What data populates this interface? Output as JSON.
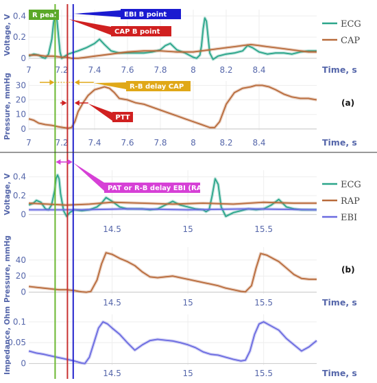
{
  "chart_data": [
    {
      "id": "a-top",
      "type": "line",
      "ylabel": "Voltage, V",
      "xlabel": "Time, s",
      "xlim": [
        7.0,
        8.75
      ],
      "ylim": [
        -0.02,
        0.46
      ],
      "yticks": [
        "0",
        "0.2",
        "0.4"
      ],
      "ytick_values": [
        0,
        0.2,
        0.4
      ],
      "xticks": [
        "7",
        "7.2",
        "7.4",
        "7.6",
        "7.8",
        "8",
        "8.2",
        "8.4"
      ],
      "xtick_values": [
        7.0,
        7.2,
        7.4,
        7.6,
        7.8,
        8.0,
        8.2,
        8.4
      ],
      "series": [
        {
          "name": "ECG",
          "color": "#2aa58a",
          "x": [
            7.0,
            7.03,
            7.06,
            7.08,
            7.1,
            7.12,
            7.14,
            7.15,
            7.16,
            7.17,
            7.18,
            7.19,
            7.2,
            7.22,
            7.24,
            7.26,
            7.3,
            7.35,
            7.4,
            7.43,
            7.46,
            7.5,
            7.55,
            7.6,
            7.65,
            7.7,
            7.75,
            7.8,
            7.83,
            7.86,
            7.9,
            7.95,
            8.0,
            8.02,
            8.04,
            8.05,
            8.06,
            8.07,
            8.08,
            8.09,
            8.1,
            8.12,
            8.15,
            8.2,
            8.25,
            8.3,
            8.33,
            8.36,
            8.4,
            8.45,
            8.5,
            8.55,
            8.6,
            8.65,
            8.7,
            8.75
          ],
          "y": [
            0.02,
            0.04,
            0.03,
            0.01,
            0.0,
            0.04,
            0.18,
            0.33,
            0.41,
            0.38,
            0.22,
            0.06,
            0.0,
            0.02,
            0.04,
            0.05,
            0.07,
            0.1,
            0.14,
            0.18,
            0.13,
            0.07,
            0.05,
            0.05,
            0.05,
            0.05,
            0.06,
            0.08,
            0.12,
            0.14,
            0.08,
            0.05,
            0.01,
            0.0,
            0.03,
            0.12,
            0.28,
            0.38,
            0.35,
            0.2,
            0.05,
            -0.01,
            0.02,
            0.04,
            0.05,
            0.07,
            0.12,
            0.1,
            0.06,
            0.04,
            0.05,
            0.05,
            0.04,
            0.06,
            0.07,
            0.07
          ]
        },
        {
          "name": "CAP",
          "color": "#b86a3a",
          "x": [
            7.0,
            7.05,
            7.1,
            7.15,
            7.2,
            7.23,
            7.26,
            7.3,
            7.35,
            7.4,
            7.45,
            7.5,
            7.55,
            7.6,
            7.7,
            7.8,
            7.9,
            8.0,
            8.05,
            8.1,
            8.15,
            8.2,
            8.25,
            8.3,
            8.35,
            8.4,
            8.45,
            8.5,
            8.55,
            8.6,
            8.65,
            8.7,
            8.75
          ],
          "y": [
            0.03,
            0.03,
            0.02,
            0.02,
            0.01,
            0.01,
            0.0,
            0.0,
            0.01,
            0.02,
            0.03,
            0.04,
            0.05,
            0.06,
            0.07,
            0.07,
            0.06,
            0.06,
            0.07,
            0.08,
            0.09,
            0.1,
            0.11,
            0.12,
            0.13,
            0.12,
            0.11,
            0.1,
            0.09,
            0.08,
            0.07,
            0.06,
            0.06
          ]
        }
      ],
      "legend": [
        "ECG",
        "CAP"
      ],
      "legend_position": "right"
    },
    {
      "id": "a-bottom",
      "type": "line",
      "ylabel": "Pressure, mmHg",
      "xlabel": "Time, s",
      "xlim": [
        7.0,
        8.75
      ],
      "ylim": [
        -1,
        33
      ],
      "yticks": [
        "0",
        "10",
        "20",
        "30"
      ],
      "ytick_values": [
        0,
        10,
        20,
        30
      ],
      "xticks": [
        "7",
        "7.2",
        "7.4",
        "7.6",
        "7.8",
        "8",
        "8.2",
        "8.4"
      ],
      "xtick_values": [
        7.0,
        7.2,
        7.4,
        7.6,
        7.8,
        8.0,
        8.2,
        8.4
      ],
      "series": [
        {
          "name": "CAP",
          "color": "#b86a3a",
          "x": [
            7.0,
            7.03,
            7.06,
            7.1,
            7.14,
            7.18,
            7.21,
            7.24,
            7.26,
            7.28,
            7.3,
            7.33,
            7.36,
            7.4,
            7.43,
            7.46,
            7.49,
            7.52,
            7.55,
            7.6,
            7.65,
            7.7,
            7.75,
            7.8,
            7.85,
            7.9,
            7.95,
            8.0,
            8.05,
            8.1,
            8.13,
            8.16,
            8.2,
            8.25,
            8.3,
            8.35,
            8.38,
            8.42,
            8.46,
            8.5,
            8.55,
            8.6,
            8.65,
            8.7,
            8.75
          ],
          "y": [
            7,
            6,
            4,
            3,
            2.5,
            1.5,
            1,
            0.5,
            1,
            5,
            12,
            18,
            23,
            27,
            28,
            29,
            28,
            25,
            21,
            20,
            18,
            17,
            15,
            13,
            11,
            9,
            7,
            5,
            3,
            1,
            1,
            5,
            17,
            25,
            28,
            29,
            30,
            30,
            29,
            27,
            24,
            22,
            21,
            21,
            20
          ]
        }
      ]
    },
    {
      "id": "b-top",
      "type": "line",
      "ylabel": "Voltage, V",
      "xlim": [
        13.95,
        15.85
      ],
      "ylim": [
        -0.04,
        0.47
      ],
      "yticks": [
        "0",
        "0.2",
        "0.4"
      ],
      "ytick_values": [
        0,
        0.2,
        0.4
      ],
      "xticks": [
        "14.5",
        "15",
        "15.5"
      ],
      "xtick_values": [
        14.5,
        15.0,
        15.5
      ],
      "series": [
        {
          "name": "ECG",
          "color": "#2aa58a",
          "x": [
            13.95,
            13.98,
            14.0,
            14.03,
            14.06,
            14.08,
            14.1,
            14.12,
            14.13,
            14.14,
            14.15,
            14.16,
            14.18,
            14.2,
            14.22,
            14.25,
            14.3,
            14.35,
            14.4,
            14.43,
            14.46,
            14.5,
            14.55,
            14.6,
            14.65,
            14.7,
            14.75,
            14.8,
            14.85,
            14.9,
            14.95,
            15.0,
            15.05,
            15.1,
            15.12,
            15.14,
            15.16,
            15.18,
            15.2,
            15.22,
            15.25,
            15.3,
            15.35,
            15.4,
            15.45,
            15.5,
            15.55,
            15.6,
            15.65,
            15.7,
            15.75,
            15.8,
            15.85
          ],
          "y": [
            0.1,
            0.12,
            0.15,
            0.13,
            0.06,
            0.05,
            0.1,
            0.25,
            0.38,
            0.42,
            0.38,
            0.22,
            0.04,
            -0.02,
            0.02,
            0.05,
            0.04,
            0.05,
            0.08,
            0.12,
            0.18,
            0.14,
            0.08,
            0.06,
            0.06,
            0.06,
            0.05,
            0.06,
            0.1,
            0.14,
            0.1,
            0.08,
            0.06,
            0.05,
            0.03,
            0.05,
            0.2,
            0.38,
            0.32,
            0.08,
            -0.02,
            0.02,
            0.04,
            0.06,
            0.05,
            0.06,
            0.1,
            0.16,
            0.08,
            0.06,
            0.05,
            0.05,
            0.05
          ]
        },
        {
          "name": "RAP",
          "color": "#b86a3a",
          "x": [
            13.95,
            14.2,
            14.35,
            14.5,
            14.7,
            14.9,
            15.1,
            15.3,
            15.5,
            15.7,
            15.85
          ],
          "y": [
            0.12,
            0.1,
            0.11,
            0.13,
            0.12,
            0.11,
            0.12,
            0.11,
            0.13,
            0.12,
            0.12
          ]
        },
        {
          "name": "EBI",
          "color": "#6a6ae0",
          "x": [
            13.95,
            14.3,
            14.6,
            15.0,
            15.4,
            15.85
          ],
          "y": [
            0.05,
            0.05,
            0.06,
            0.05,
            0.06,
            0.05
          ]
        }
      ],
      "legend": [
        "ECG",
        "RAP",
        "EBI"
      ],
      "legend_position": "right"
    },
    {
      "id": "b-middle",
      "type": "line",
      "ylabel": "Pressure, mmHg",
      "xlabel": "Time, s",
      "xlim": [
        13.95,
        15.85
      ],
      "ylim": [
        -2,
        56
      ],
      "yticks": [
        "0",
        "20",
        "40"
      ],
      "ytick_values": [
        0,
        20,
        40
      ],
      "xticks": [
        "14.5",
        "15",
        "15.5"
      ],
      "xtick_values": [
        14.5,
        15.0,
        15.5
      ],
      "series": [
        {
          "name": "RAP",
          "color": "#b86a3a",
          "x": [
            13.95,
            14.0,
            14.05,
            14.1,
            14.15,
            14.2,
            14.25,
            14.28,
            14.3,
            14.33,
            14.36,
            14.4,
            14.43,
            14.46,
            14.5,
            14.55,
            14.6,
            14.65,
            14.7,
            14.75,
            14.8,
            14.85,
            14.9,
            14.95,
            15.0,
            15.05,
            15.1,
            15.15,
            15.2,
            15.25,
            15.3,
            15.35,
            15.38,
            15.42,
            15.45,
            15.48,
            15.52,
            15.56,
            15.6,
            15.65,
            15.7,
            15.75,
            15.8,
            15.85
          ],
          "y": [
            7,
            6,
            5,
            4,
            3,
            3,
            2,
            1,
            0.5,
            0,
            1,
            15,
            35,
            49,
            47,
            42,
            38,
            33,
            25,
            19,
            18,
            19,
            20,
            18,
            16,
            14,
            12,
            10,
            8,
            5,
            3,
            1,
            0.5,
            8,
            30,
            48,
            46,
            42,
            38,
            30,
            22,
            17,
            16,
            16
          ]
        }
      ]
    },
    {
      "id": "b-bottom",
      "type": "line",
      "ylabel": "Impedance, Ohm",
      "xlabel": "Time, s",
      "xlim": [
        13.95,
        15.85
      ],
      "ylim": [
        -0.004,
        0.118
      ],
      "yticks": [
        "0",
        "0.05",
        "0.1"
      ],
      "ytick_values": [
        0,
        0.05,
        0.1
      ],
      "xticks": [
        "14.5",
        "15",
        "15.5"
      ],
      "xtick_values": [
        14.5,
        15.0,
        15.5
      ],
      "series": [
        {
          "name": "EBI",
          "color": "#6a6ae0",
          "x": [
            13.95,
            14.0,
            14.05,
            14.1,
            14.15,
            14.2,
            14.25,
            14.28,
            14.3,
            14.32,
            14.35,
            14.38,
            14.41,
            14.44,
            14.47,
            14.5,
            14.55,
            14.6,
            14.65,
            14.7,
            14.75,
            14.8,
            14.85,
            14.9,
            14.95,
            15.0,
            15.05,
            15.1,
            15.15,
            15.2,
            15.25,
            15.3,
            15.35,
            15.38,
            15.41,
            15.44,
            15.47,
            15.5,
            15.55,
            15.6,
            15.65,
            15.7,
            15.75,
            15.8,
            15.85
          ],
          "y": [
            0.03,
            0.025,
            0.022,
            0.018,
            0.014,
            0.01,
            0.006,
            0.003,
            0.001,
            0.0,
            0.015,
            0.05,
            0.085,
            0.1,
            0.095,
            0.085,
            0.07,
            0.05,
            0.032,
            0.045,
            0.055,
            0.058,
            0.056,
            0.054,
            0.05,
            0.045,
            0.038,
            0.028,
            0.022,
            0.02,
            0.015,
            0.01,
            0.006,
            0.008,
            0.03,
            0.07,
            0.095,
            0.1,
            0.09,
            0.08,
            0.06,
            0.045,
            0.03,
            0.04,
            0.055
          ]
        }
      ]
    }
  ],
  "panel_labels": [
    "(a)",
    "(b)"
  ],
  "markers": {
    "time_a": [
      7.16,
      7.235,
      7.27
    ],
    "colors": [
      "#6ab830",
      "#c83030",
      "#2222cc"
    ]
  },
  "annotations": {
    "r_peak": "R peak",
    "ebi_b_point": "EBI B point",
    "cap_b_point": "CAP B point",
    "rb_delay_cap": "R-B delay CAP",
    "ptt": "PTT",
    "pat": "PAT or R-B delay EBI (RAP)"
  },
  "annotation_colors": {
    "r_peak": "#5aa828",
    "ebi_b_point": "#1a1ad0",
    "cap_b_point": "#d02020",
    "rb_delay_cap": "#e0a818",
    "ptt": "#d02020",
    "pat": "#d640d6"
  }
}
